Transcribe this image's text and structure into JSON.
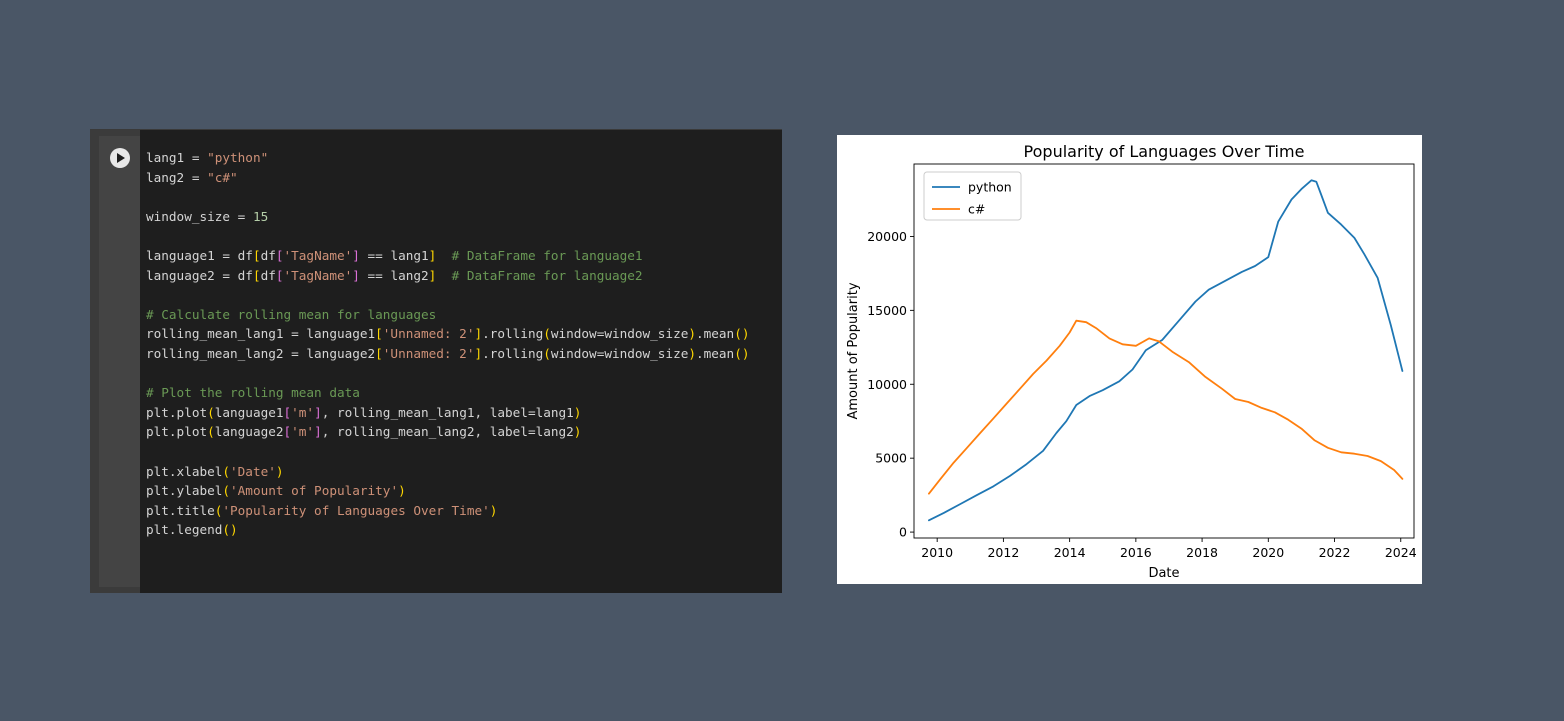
{
  "code_cell": {
    "lines": [
      [
        {
          "t": "lang1 = ",
          "c": "w"
        },
        {
          "t": "\"python\"",
          "c": "s"
        }
      ],
      [
        {
          "t": "lang2 = ",
          "c": "w"
        },
        {
          "t": "\"c#\"",
          "c": "s"
        }
      ],
      [],
      [
        {
          "t": "window_size = ",
          "c": "w"
        },
        {
          "t": "15",
          "c": "n"
        }
      ],
      [],
      [
        {
          "t": "language1 = df",
          "c": "w"
        },
        {
          "t": "[",
          "c": "b"
        },
        {
          "t": "df",
          "c": "w"
        },
        {
          "t": "[",
          "c": "b2"
        },
        {
          "t": "'TagName'",
          "c": "s"
        },
        {
          "t": "]",
          "c": "b2"
        },
        {
          "t": " == lang1",
          "c": "w"
        },
        {
          "t": "]",
          "c": "b"
        },
        {
          "t": "  # DataFrame for language1",
          "c": "c"
        }
      ],
      [
        {
          "t": "language2 = df",
          "c": "w"
        },
        {
          "t": "[",
          "c": "b"
        },
        {
          "t": "df",
          "c": "w"
        },
        {
          "t": "[",
          "c": "b2"
        },
        {
          "t": "'TagName'",
          "c": "s"
        },
        {
          "t": "]",
          "c": "b2"
        },
        {
          "t": " == lang2",
          "c": "w"
        },
        {
          "t": "]",
          "c": "b"
        },
        {
          "t": "  # DataFrame for language2",
          "c": "c"
        }
      ],
      [],
      [
        {
          "t": "# Calculate rolling mean for languages",
          "c": "c"
        }
      ],
      [
        {
          "t": "rolling_mean_lang1 = language1",
          "c": "w"
        },
        {
          "t": "[",
          "c": "b"
        },
        {
          "t": "'Unnamed: 2'",
          "c": "s"
        },
        {
          "t": "]",
          "c": "b"
        },
        {
          "t": ".rolling",
          "c": "w"
        },
        {
          "t": "(",
          "c": "b"
        },
        {
          "t": "window=window_size",
          "c": "w"
        },
        {
          "t": ")",
          "c": "b"
        },
        {
          "t": ".mean",
          "c": "w"
        },
        {
          "t": "()",
          "c": "b"
        }
      ],
      [
        {
          "t": "rolling_mean_lang2 = language2",
          "c": "w"
        },
        {
          "t": "[",
          "c": "b"
        },
        {
          "t": "'Unnamed: 2'",
          "c": "s"
        },
        {
          "t": "]",
          "c": "b"
        },
        {
          "t": ".rolling",
          "c": "w"
        },
        {
          "t": "(",
          "c": "b"
        },
        {
          "t": "window=window_size",
          "c": "w"
        },
        {
          "t": ")",
          "c": "b"
        },
        {
          "t": ".mean",
          "c": "w"
        },
        {
          "t": "()",
          "c": "b"
        }
      ],
      [],
      [
        {
          "t": "# Plot the rolling mean data",
          "c": "c"
        }
      ],
      [
        {
          "t": "plt.plot",
          "c": "w"
        },
        {
          "t": "(",
          "c": "b"
        },
        {
          "t": "language1",
          "c": "w"
        },
        {
          "t": "[",
          "c": "b2"
        },
        {
          "t": "'m'",
          "c": "s"
        },
        {
          "t": "]",
          "c": "b2"
        },
        {
          "t": ", rolling_mean_lang1, label=lang1",
          "c": "w"
        },
        {
          "t": ")",
          "c": "b"
        }
      ],
      [
        {
          "t": "plt.plot",
          "c": "w"
        },
        {
          "t": "(",
          "c": "b"
        },
        {
          "t": "language2",
          "c": "w"
        },
        {
          "t": "[",
          "c": "b2"
        },
        {
          "t": "'m'",
          "c": "s"
        },
        {
          "t": "]",
          "c": "b2"
        },
        {
          "t": ", rolling_mean_lang2, label=lang2",
          "c": "w"
        },
        {
          "t": ")",
          "c": "b"
        }
      ],
      [],
      [
        {
          "t": "plt.xlabel",
          "c": "w"
        },
        {
          "t": "(",
          "c": "b"
        },
        {
          "t": "'Date'",
          "c": "s"
        },
        {
          "t": ")",
          "c": "b"
        }
      ],
      [
        {
          "t": "plt.ylabel",
          "c": "w"
        },
        {
          "t": "(",
          "c": "b"
        },
        {
          "t": "'Amount of Popularity'",
          "c": "s"
        },
        {
          "t": ")",
          "c": "b"
        }
      ],
      [
        {
          "t": "plt.title",
          "c": "w"
        },
        {
          "t": "(",
          "c": "b"
        },
        {
          "t": "'Popularity of Languages Over Time'",
          "c": "s"
        },
        {
          "t": ")",
          "c": "b"
        }
      ],
      [
        {
          "t": "plt.legend",
          "c": "w"
        },
        {
          "t": "()",
          "c": "b"
        }
      ]
    ]
  },
  "chart_data": {
    "type": "line",
    "title": "Popularity of Languages Over Time",
    "xlabel": "Date",
    "ylabel": "Amount of Popularity",
    "xlim": [
      2009.3,
      2024.4
    ],
    "ylim": [
      -400,
      24900
    ],
    "xticks": [
      2010,
      2012,
      2014,
      2016,
      2018,
      2020,
      2022,
      2024
    ],
    "yticks": [
      0,
      5000,
      10000,
      15000,
      20000
    ],
    "legend": "top-left",
    "grid": false,
    "series": [
      {
        "name": "python",
        "color": "#1f77b4",
        "x": [
          2009.75,
          2010.2,
          2010.7,
          2011.2,
          2011.7,
          2012.2,
          2012.7,
          2013.2,
          2013.6,
          2013.9,
          2014.2,
          2014.6,
          2015.0,
          2015.5,
          2015.9,
          2016.3,
          2016.8,
          2017.3,
          2017.8,
          2018.2,
          2018.7,
          2019.2,
          2019.6,
          2020.0,
          2020.3,
          2020.7,
          2021.0,
          2021.3,
          2021.45,
          2021.6,
          2021.8,
          2022.2,
          2022.6,
          2022.9,
          2023.3,
          2023.7,
          2024.05
        ],
        "y": [
          800,
          1300,
          1900,
          2500,
          3100,
          3800,
          4600,
          5500,
          6700,
          7500,
          8600,
          9200,
          9600,
          10200,
          11000,
          12300,
          13000,
          14300,
          15600,
          16400,
          17000,
          17600,
          18000,
          18600,
          21000,
          22500,
          23200,
          23800,
          23700,
          22800,
          21600,
          20800,
          19900,
          18800,
          17200,
          14000,
          10900
        ]
      },
      {
        "name": "c#",
        "color": "#ff7f0e",
        "x": [
          2009.75,
          2010.1,
          2010.5,
          2010.9,
          2011.3,
          2011.7,
          2012.1,
          2012.5,
          2012.9,
          2013.3,
          2013.7,
          2014.0,
          2014.2,
          2014.5,
          2014.8,
          2015.2,
          2015.6,
          2016.0,
          2016.4,
          2016.7,
          2017.1,
          2017.6,
          2018.1,
          2018.6,
          2019.0,
          2019.4,
          2019.8,
          2020.2,
          2020.6,
          2021.0,
          2021.4,
          2021.8,
          2022.2,
          2022.6,
          2023.0,
          2023.4,
          2023.8,
          2024.05
        ],
        "y": [
          2600,
          3600,
          4700,
          5700,
          6700,
          7700,
          8700,
          9700,
          10700,
          11600,
          12600,
          13500,
          14300,
          14200,
          13800,
          13100,
          12700,
          12600,
          13100,
          12900,
          12200,
          11500,
          10500,
          9700,
          9000,
          8800,
          8400,
          8100,
          7600,
          7000,
          6200,
          5700,
          5400,
          5300,
          5150,
          4800,
          4200,
          3600
        ]
      }
    ]
  }
}
